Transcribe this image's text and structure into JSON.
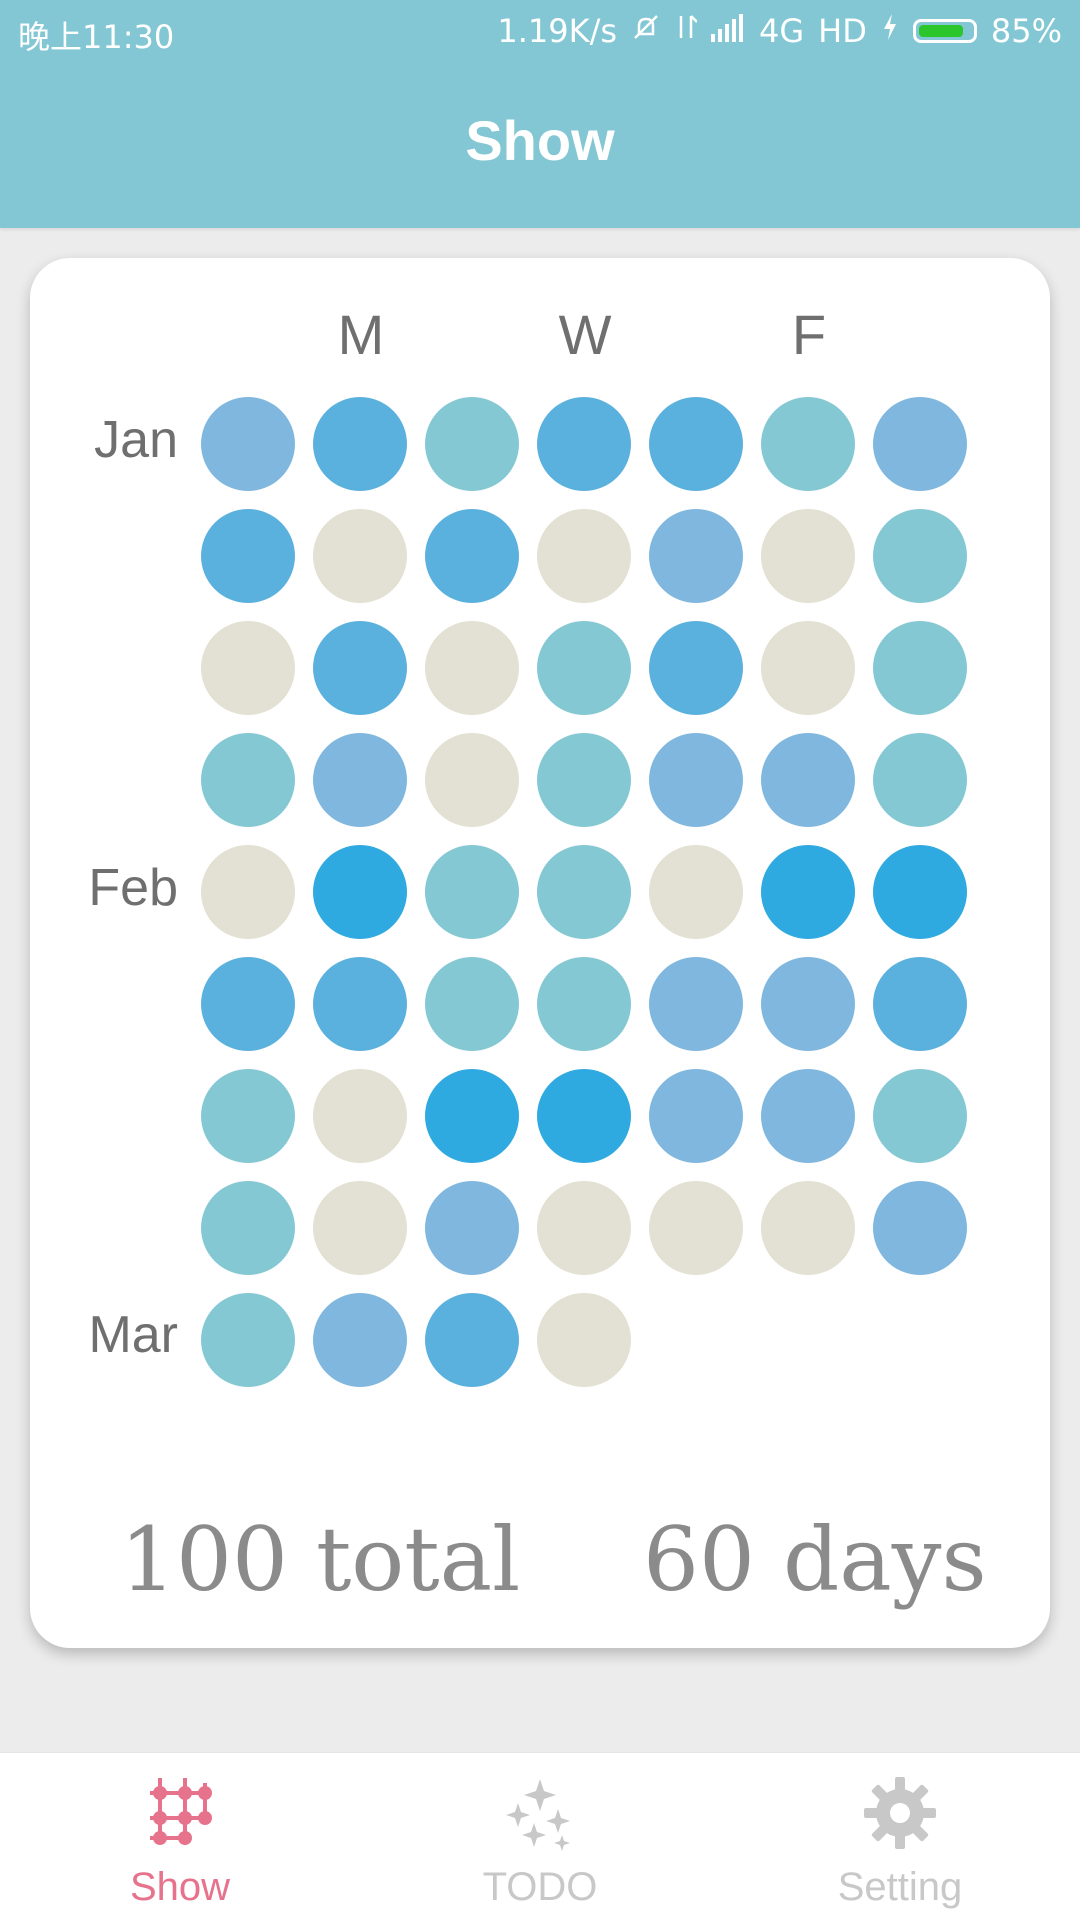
{
  "status_bar": {
    "time": "晚上11:30",
    "network_speed": "1.19K/s",
    "network_type": "4G",
    "hd": "HD",
    "battery": "85%",
    "battery_level_percent": 85
  },
  "app_bar": {
    "title": "Show"
  },
  "calendar": {
    "day_headers": [
      "M",
      "W",
      "F"
    ],
    "month_labels": [
      {
        "text": "Jan",
        "row": 0
      },
      {
        "text": "Feb",
        "row": 4
      },
      {
        "text": "Mar",
        "row": 8
      }
    ],
    "colors": {
      "beige": "#e2e1d3",
      "teal": "#84c8d4",
      "periwinkle": "#7fb7de",
      "blue": "#5ab1dd",
      "bright": "#2faae0"
    },
    "rows": [
      [
        "periwinkle",
        "blue",
        "teal",
        "blue",
        "blue",
        "teal",
        "periwinkle"
      ],
      [
        "blue",
        "beige",
        "blue",
        "beige",
        "periwinkle",
        "beige",
        "teal"
      ],
      [
        "beige",
        "blue",
        "beige",
        "teal",
        "blue",
        "beige",
        "teal"
      ],
      [
        "teal",
        "periwinkle",
        "beige",
        "teal",
        "periwinkle",
        "periwinkle",
        "teal"
      ],
      [
        "beige",
        "bright",
        "teal",
        "teal",
        "beige",
        "bright",
        "bright"
      ],
      [
        "blue",
        "blue",
        "teal",
        "teal",
        "periwinkle",
        "periwinkle",
        "blue"
      ],
      [
        "teal",
        "beige",
        "bright",
        "bright",
        "periwinkle",
        "periwinkle",
        "teal"
      ],
      [
        "teal",
        "beige",
        "periwinkle",
        "beige",
        "beige",
        "beige",
        "periwinkle"
      ],
      [
        "teal",
        "periwinkle",
        "blue",
        "beige"
      ]
    ]
  },
  "summary": {
    "total": "100 total",
    "days": "60 days"
  },
  "tab_bar": {
    "tabs": [
      {
        "label": "Show",
        "icon": "grid-nodes-icon",
        "active": true,
        "color": "#e6728c"
      },
      {
        "label": "TODO",
        "icon": "sparkle-icon",
        "active": false,
        "color": "#c8c8c8"
      },
      {
        "label": "Setting",
        "icon": "gear-icon",
        "active": false,
        "color": "#c8c8c8"
      }
    ]
  }
}
